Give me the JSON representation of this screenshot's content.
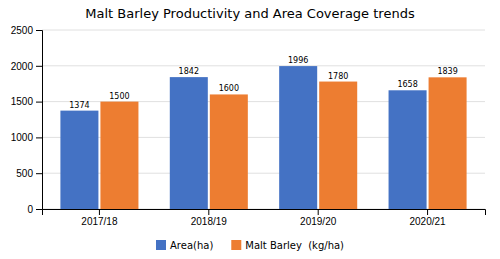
{
  "chart_data": {
    "type": "bar",
    "title": "Malt Barley Productivity and Area Coverage trends",
    "categories": [
      "2017/18",
      "2018/19",
      "2019/20",
      "2020/21"
    ],
    "series": [
      {
        "name": "Area(ha)",
        "color": "#4472C4",
        "values": [
          1374,
          1842,
          1996,
          1658
        ]
      },
      {
        "name": "Malt Barley  (kg/ha)",
        "color": "#ED7D31",
        "values": [
          1500,
          1600,
          1780,
          1839
        ]
      }
    ],
    "ylim": [
      0,
      2500
    ],
    "yticks": [
      0,
      500,
      1000,
      1500,
      2000,
      2500
    ],
    "grid": true,
    "legend": "bottom",
    "data_labels": true
  }
}
